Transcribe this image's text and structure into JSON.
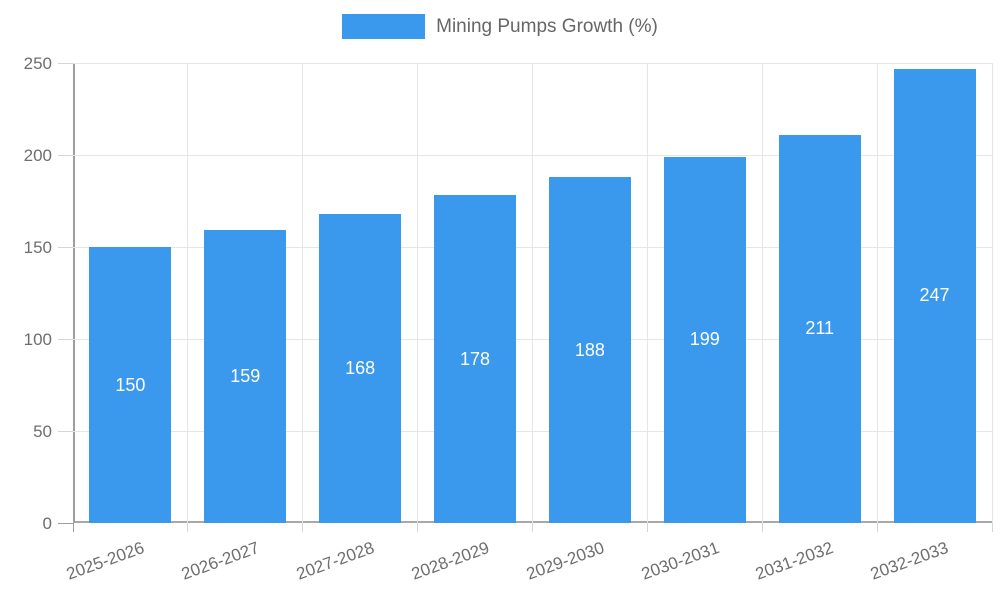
{
  "legend": {
    "label": "Mining Pumps Growth (%)"
  },
  "chart_data": {
    "type": "bar",
    "title": "",
    "series_name": "Mining Pumps Growth (%)",
    "categories": [
      "2025-2026",
      "2026-2027",
      "2027-2028",
      "2028-2029",
      "2029-2030",
      "2030-2031",
      "2031-2032",
      "2032-2033"
    ],
    "values": [
      150,
      159,
      168,
      178,
      188,
      199,
      211,
      247
    ],
    "xlabel": "",
    "ylabel": "",
    "ylim": [
      0,
      250
    ],
    "yticks": [
      0,
      50,
      100,
      150,
      200,
      250
    ],
    "grid": true,
    "legend_position": "top",
    "value_labels": "inside-center",
    "x_label_rotation_deg": -20
  },
  "colors": {
    "bar": "#3a99ec",
    "gridline": "#e6e6e6",
    "axis_border": "#9e9e9e",
    "tick_mark": "#d6d6d6",
    "tick_text": "#6e6e6e",
    "value_text": "#ffffff",
    "background": "#ffffff"
  }
}
